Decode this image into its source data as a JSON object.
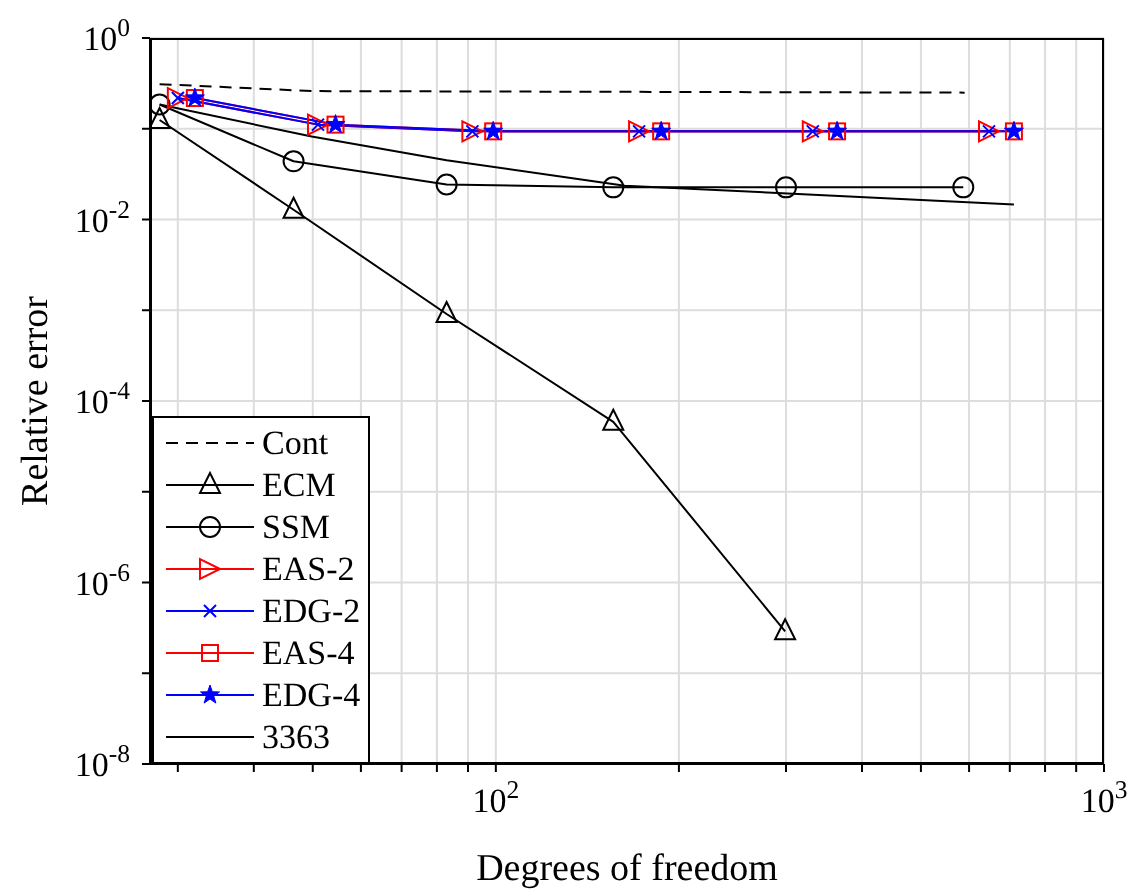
{
  "chart_data": {
    "type": "line",
    "xlabel": "Degrees of freedom",
    "ylabel": "Relative error",
    "log": "xy",
    "grid": true,
    "legend": "bottom left",
    "xlim": [
      27,
      1000
    ],
    "xticks": [
      {
        "value": 30,
        "label": null
      },
      {
        "value": 40,
        "label": null
      },
      {
        "value": 50,
        "label": null
      },
      {
        "value": 60,
        "label": null
      },
      {
        "value": 70,
        "label": null
      },
      {
        "value": 80,
        "label": null
      },
      {
        "value": 90,
        "label": null
      },
      {
        "value": 100,
        "label": "10$^{2}$"
      },
      {
        "value": 200,
        "label": null
      },
      {
        "value": 300,
        "label": null
      },
      {
        "value": 400,
        "label": null
      },
      {
        "value": 500,
        "label": null
      },
      {
        "value": 600,
        "label": null
      },
      {
        "value": 700,
        "label": null
      },
      {
        "value": 800,
        "label": null
      },
      {
        "value": 900,
        "label": null
      },
      {
        "value": 1000,
        "label": "10$^{3}$"
      }
    ],
    "ylim": [
      1e-08,
      1
    ],
    "yticks": [
      {
        "value": 1e-08,
        "label": "10$^{-8}$"
      },
      {
        "value": 1e-07,
        "label": null
      },
      {
        "value": 1e-06,
        "label": "10$^{-6}$"
      },
      {
        "value": 1e-05,
        "label": null
      },
      {
        "value": 0.0001,
        "label": "10$^{-4}$"
      },
      {
        "value": 0.001,
        "label": null
      },
      {
        "value": 0.01,
        "label": "10$^{-2}$"
      },
      {
        "value": 0.1,
        "label": null
      },
      {
        "value": 1,
        "label": "10$^{0}$"
      }
    ],
    "series": [
      {
        "name": "Cont",
        "color": "#000000",
        "line_style": "dashed",
        "marker": "none",
        "x": [
          28,
          50,
          590
        ],
        "values": [
          0.31,
          0.26,
          0.25
        ]
      },
      {
        "name": "ECM",
        "color": "#000000",
        "line_style": "solid",
        "marker": "triangle",
        "x": [
          28,
          46.5,
          83,
          156,
          299
        ],
        "values": [
          0.125,
          0.0128,
          0.00091,
          5.9e-05,
          2.9e-07
        ]
      },
      {
        "name": "SSM",
        "color": "#000000",
        "line_style": "solid",
        "marker": "circle",
        "x": [
          28,
          46.5,
          83,
          156,
          300,
          587
        ],
        "values": [
          0.185,
          0.0438,
          0.0243,
          0.0226,
          0.0226,
          0.0226
        ]
      },
      {
        "name": "EAS-2",
        "color": "#ff0000",
        "line_style": "solid",
        "marker": "triangle-right",
        "x": [
          30,
          51,
          91.5,
          172,
          332,
          647
        ],
        "values": [
          0.218,
          0.111,
          0.0936,
          0.0936,
          0.0936,
          0.0936
        ]
      },
      {
        "name": "EDG-2",
        "color": "#0000ff",
        "line_style": "solid",
        "marker": "cross",
        "x": [
          30,
          51,
          91.5,
          172,
          332,
          647
        ],
        "values": [
          0.218,
          0.111,
          0.0936,
          0.0936,
          0.0936,
          0.0936
        ]
      },
      {
        "name": "EAS-4",
        "color": "#ff0000",
        "line_style": "solid",
        "marker": "square",
        "x": [
          32,
          54.5,
          99,
          187,
          364,
          711
        ],
        "values": [
          0.218,
          0.111,
          0.0936,
          0.0936,
          0.0936,
          0.0936
        ]
      },
      {
        "name": "EDG-4",
        "color": "#0000ff",
        "line_style": "solid",
        "marker": "star",
        "x": [
          32,
          54.5,
          99,
          187,
          364,
          711
        ],
        "values": [
          0.218,
          0.111,
          0.0936,
          0.0936,
          0.0936,
          0.0936
        ]
      },
      {
        "name": "3363",
        "color": "#000000",
        "line_style": "solid",
        "marker": "none",
        "x": [
          28,
          49.8,
          83,
          163,
          320,
          711
        ],
        "values": [
          0.185,
          0.082,
          0.045,
          0.0235,
          0.019,
          0.0146
        ]
      }
    ]
  }
}
